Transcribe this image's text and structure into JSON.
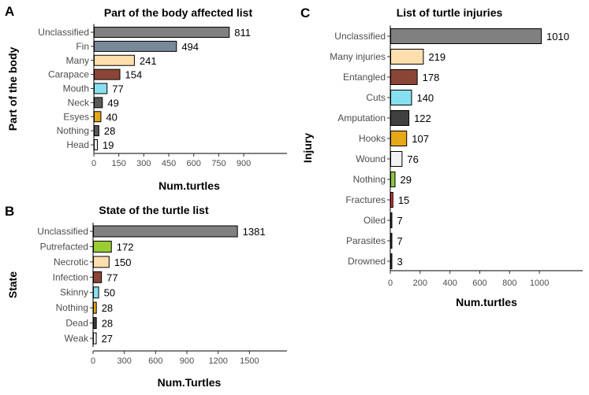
{
  "chart_data": [
    {
      "panel": "A",
      "type": "bar",
      "orientation": "horizontal",
      "title": "Part of the body affected list",
      "xlabel": "Num.turtles",
      "ylabel": "Part of the body",
      "categories": [
        "Unclassified",
        "Fin",
        "Many",
        "Carapace",
        "Mouth",
        "Neck",
        "Esyes",
        "Nothing",
        "Head"
      ],
      "values": [
        811,
        494,
        241,
        154,
        77,
        49,
        40,
        28,
        19
      ],
      "colors": [
        "#808080",
        "#778899",
        "#ffdead",
        "#8b4536",
        "#87e0f0",
        "#595959",
        "#e6a817",
        "#595959",
        "#f2f2f2"
      ],
      "xticks": [
        0,
        150,
        300,
        450,
        600,
        750,
        900
      ],
      "xlim": [
        0,
        1160
      ]
    },
    {
      "panel": "B",
      "type": "bar",
      "orientation": "horizontal",
      "title": "State of the turtle list",
      "xlabel": "Num.Turtles",
      "ylabel": "State",
      "categories": [
        "Unclassified",
        "Putrefacted",
        "Necrotic",
        "Infection",
        "Skinny",
        "Nothing",
        "Dead",
        "Weak"
      ],
      "values": [
        1381,
        172,
        150,
        77,
        50,
        28,
        28,
        27
      ],
      "colors": [
        "#808080",
        "#9acd32",
        "#ffdead",
        "#8b4536",
        "#87e0f0",
        "#e6a817",
        "#3d3d3d",
        "#f2f2f2"
      ],
      "xticks": [
        0,
        300,
        600,
        900,
        1200,
        1500
      ],
      "xlim": [
        0,
        1860
      ]
    },
    {
      "panel": "C",
      "type": "bar",
      "orientation": "horizontal",
      "title": "List of turtle injuries",
      "xlabel": "Num.turtles",
      "ylabel": "Injury",
      "categories": [
        "Unclassified",
        "Many injuries",
        "Entangled",
        "Cuts",
        "Amputation",
        "Hooks",
        "Wound",
        "Nothing",
        "Fractures",
        "Oiled",
        "Parasites",
        "Drowned"
      ],
      "values": [
        1010,
        219,
        178,
        140,
        122,
        107,
        76,
        29,
        15,
        7,
        7,
        3
      ],
      "colors": [
        "#808080",
        "#ffdead",
        "#8b4536",
        "#87e0f0",
        "#404040",
        "#e6a817",
        "#f2f2f2",
        "#8dc63f",
        "#e0303a",
        "#404040",
        "#404040",
        "#404040"
      ],
      "xticks": [
        0,
        200,
        400,
        600,
        800,
        1000
      ],
      "xlim": [
        0,
        1290
      ]
    }
  ]
}
